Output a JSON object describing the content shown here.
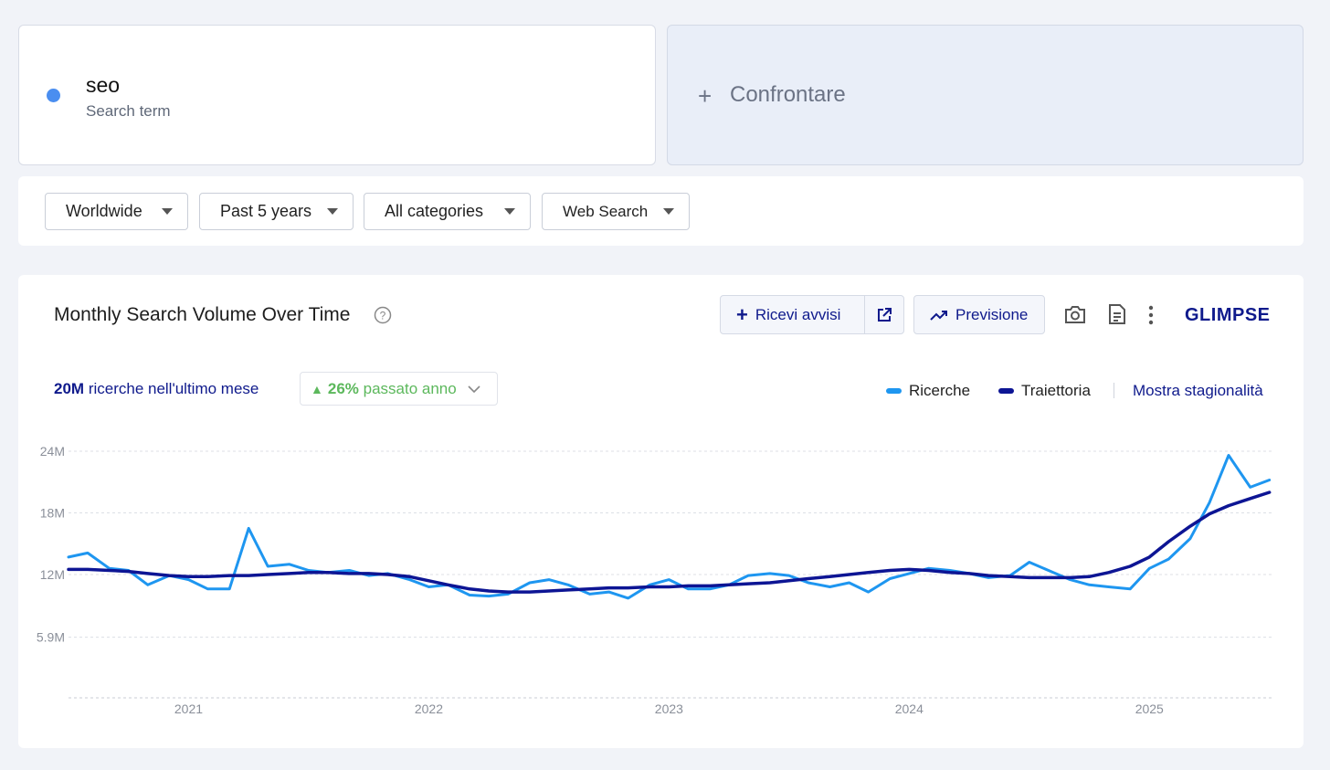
{
  "search": {
    "term": "seo",
    "label": "Search term"
  },
  "compare": {
    "label": "Confrontare"
  },
  "filters": [
    "Worldwide",
    "Past 5 years",
    "All categories",
    "Web Search"
  ],
  "panel": {
    "title": "Monthly Search Volume Over Time",
    "alerts_button": "Ricevi avvisi",
    "forecast_button": "Previsione",
    "brand": "GLIMPSE",
    "last_month_value": "20M",
    "last_month_text": "ricerche nell'ultimo mese",
    "growth_value": "26%",
    "growth_text": "passato anno",
    "seasonality_link": "Mostra stagionalità"
  },
  "chart_data": {
    "type": "line",
    "x": [
      2020.5,
      2020.58,
      2020.67,
      2020.75,
      2020.83,
      2020.92,
      2021,
      2021.08,
      2021.17,
      2021.25,
      2021.33,
      2021.42,
      2021.5,
      2021.58,
      2021.67,
      2021.75,
      2021.83,
      2021.92,
      2022,
      2022.08,
      2022.17,
      2022.25,
      2022.33,
      2022.42,
      2022.5,
      2022.58,
      2022.67,
      2022.75,
      2022.83,
      2022.92,
      2023,
      2023.08,
      2023.17,
      2023.25,
      2023.33,
      2023.42,
      2023.5,
      2023.58,
      2023.67,
      2023.75,
      2023.83,
      2023.92,
      2024,
      2024.08,
      2024.17,
      2024.25,
      2024.33,
      2024.42,
      2024.5,
      2024.58,
      2024.67,
      2024.75,
      2024.83,
      2024.92,
      2025,
      2025.08,
      2025.17,
      2025.25,
      2025.33,
      2025.42,
      2025.5
    ],
    "series": [
      {
        "name": "Ricerche",
        "color": "#1e96f0",
        "values": [
          13.7,
          14.1,
          12.6,
          12.4,
          11.0,
          11.9,
          11.5,
          10.6,
          10.6,
          16.5,
          12.8,
          13.0,
          12.4,
          12.2,
          12.4,
          11.9,
          12.1,
          11.5,
          10.8,
          11.0,
          10.0,
          9.9,
          10.1,
          11.2,
          11.5,
          11.0,
          10.1,
          10.3,
          9.7,
          11.0,
          11.5,
          10.6,
          10.6,
          11.0,
          11.9,
          12.1,
          11.9,
          11.2,
          10.8,
          11.2,
          10.3,
          11.6,
          12.1,
          12.6,
          12.4,
          12.1,
          11.7,
          11.9,
          13.2,
          12.4,
          11.5,
          11.0,
          10.8,
          10.6,
          12.6,
          13.5,
          15.5,
          19.0,
          23.6,
          20.5,
          21.2
        ]
      },
      {
        "name": "Traiettoria",
        "color": "#0d1594",
        "values": [
          12.5,
          12.5,
          12.4,
          12.3,
          12.1,
          11.9,
          11.8,
          11.8,
          11.9,
          11.9,
          12.0,
          12.1,
          12.2,
          12.2,
          12.1,
          12.1,
          12.0,
          11.8,
          11.4,
          11.0,
          10.6,
          10.4,
          10.3,
          10.3,
          10.4,
          10.5,
          10.6,
          10.7,
          10.7,
          10.8,
          10.8,
          10.9,
          10.9,
          11.0,
          11.1,
          11.2,
          11.4,
          11.6,
          11.8,
          12.0,
          12.2,
          12.4,
          12.5,
          12.4,
          12.2,
          12.1,
          11.9,
          11.8,
          11.7,
          11.7,
          11.7,
          11.8,
          12.2,
          12.8,
          13.7,
          15.2,
          16.7,
          17.9,
          18.7,
          19.4,
          20.0
        ]
      }
    ],
    "xlim": [
      2020.5,
      2025.52
    ],
    "xticks": [
      2021,
      2022,
      2023,
      2024,
      2025
    ],
    "ylim": [
      0,
      24
    ],
    "yticks": [
      {
        "value": 5.9,
        "label": "5.9M"
      },
      {
        "value": 12,
        "label": "12M"
      },
      {
        "value": 18,
        "label": "18M"
      },
      {
        "value": 24,
        "label": "24M"
      }
    ],
    "grid": true
  }
}
